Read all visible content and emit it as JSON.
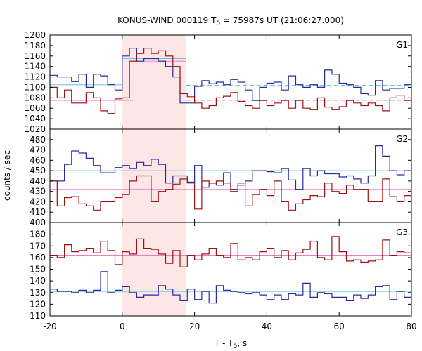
{
  "chart_data": {
    "type": "line",
    "title": {
      "main": "KONUS-WIND 000119 T",
      "sub": "0",
      "rest": " = 75987s UT (21:06:27.000)"
    },
    "xlabel": {
      "main": "T - T",
      "sub": "0",
      "rest": ", s"
    },
    "ylabel": "counts / sec",
    "xlim": [
      -20,
      80
    ],
    "x_ticks": [
      -20,
      0,
      20,
      40,
      60,
      80
    ],
    "x_tick_labels": [
      "-20",
      "0",
      "20",
      "40",
      "60",
      "80"
    ],
    "colors": {
      "red_series": "#a01010",
      "blue_series": "#2a2aa0",
      "pink_level": "#e880c8",
      "cyan_level": "#60c8e0",
      "highlight": "#fde6e6"
    },
    "highlight_interval": [
      0,
      17.7
    ],
    "bin_width": 2,
    "x_start": -20,
    "panels": [
      {
        "label": "G1",
        "ylim": [
          1020,
          1200
        ],
        "y_ticks": [
          1020,
          1040,
          1060,
          1080,
          1100,
          1120,
          1140,
          1160,
          1180,
          1200
        ],
        "series": [
          {
            "color_key": "blue_series",
            "values": [
              1123,
              1120,
              1120,
              1111,
              1125,
              1100,
              1125,
              1122,
              1105,
              1095,
              1160,
              1175,
              1150,
              1155,
              1155,
              1150,
              1140,
              1120,
              1070,
              1070,
              1102,
              1113,
              1107,
              1110,
              1105,
              1115,
              1110,
              1095,
              1075,
              1100,
              1108,
              1110,
              1095,
              1122,
              1105,
              1100,
              1105,
              1100,
              1133,
              1125,
              1108,
              1105,
              1100,
              1088,
              1085,
              1113,
              1095,
              1098,
              1098,
              1105
            ]
          },
          {
            "color_key": "red_series",
            "values": [
              1100,
              1080,
              1095,
              1070,
              1070,
              1090,
              1080,
              1055,
              1050,
              1078,
              1080,
              1150,
              1165,
              1175,
              1165,
              1170,
              1160,
              1140,
              1088,
              1082,
              1070,
              1060,
              1065,
              1080,
              1083,
              1090,
              1073,
              1065,
              1060,
              1075,
              1065,
              1070,
              1075,
              1060,
              1075,
              1060,
              1058,
              1080,
              1062,
              1058,
              1063,
              1075,
              1070,
              1065,
              1070,
              1065,
              1055,
              1080,
              1085,
              1075
            ]
          }
        ],
        "levels": [
          {
            "color_key": "pink_level",
            "segments": [
              {
                "from": -20,
                "to": 3,
                "y": 1075,
                "style": "solid"
              },
              {
                "from": 3,
                "to": 17.7,
                "y": 1150,
                "style": "solid"
              },
              {
                "from": 17.7,
                "to": 80,
                "y": 1075,
                "style": "dashed"
              }
            ]
          },
          {
            "color_key": "cyan_level",
            "segments": [
              {
                "from": -20,
                "to": 0,
                "y": 1105,
                "style": "solid"
              },
              {
                "from": 0,
                "to": 17.7,
                "y": 1155,
                "style": "solid"
              },
              {
                "from": 17.7,
                "to": 80,
                "y": 1104,
                "style": "dashed"
              }
            ]
          }
        ]
      },
      {
        "label": "G2",
        "ylim": [
          400,
          490
        ],
        "y_ticks": [
          400,
          410,
          420,
          430,
          440,
          450,
          460,
          470,
          480
        ],
        "series": [
          {
            "color_key": "blue_series",
            "values": [
              440,
              440,
              456,
              469,
              467,
              462,
              455,
              448,
              448,
              453,
              455,
              452,
              458,
              455,
              461,
              456,
              438,
              445,
              445,
              439,
              455,
              434,
              438,
              436,
              448,
              432,
              436,
              440,
              450,
              450,
              449,
              448,
              452,
              441,
              432,
              452,
              445,
              450,
              447,
              447,
              444,
              445,
              442,
              438,
              445,
              474,
              464,
              450,
              446,
              450
            ]
          },
          {
            "color_key": "red_series",
            "values": [
              440,
              416,
              424,
              425,
              418,
              416,
              412,
              420,
              420,
              424,
              427,
              440,
              445,
              445,
              420,
              430,
              432,
              437,
              442,
              438,
              413,
              440,
              438,
              440,
              438,
              430,
              438,
              416,
              427,
              432,
              426,
              440,
              420,
              412,
              418,
              422,
              426,
              425,
              438,
              430,
              428,
              436,
              432,
              432,
              420,
              420,
              442,
              425,
              420,
              426
            ]
          }
        ],
        "levels": [
          {
            "color_key": "pink_level",
            "segments": [
              {
                "from": -20,
                "to": 80,
                "y": 432,
                "style": "solid"
              }
            ]
          },
          {
            "color_key": "cyan_level",
            "segments": [
              {
                "from": -20,
                "to": 80,
                "y": 450,
                "style": "solid"
              }
            ]
          }
        ]
      },
      {
        "label": "G3",
        "ylim": [
          110,
          190
        ],
        "y_ticks": [
          110,
          120,
          130,
          140,
          150,
          160,
          170,
          180
        ],
        "series": [
          {
            "color_key": "blue_series",
            "values": [
              133,
              131,
              131,
              130,
              132,
              130,
              132,
              148,
              130,
              132,
              135,
              130,
              126,
              128,
              128,
              136,
              133,
              128,
              123,
              133,
              124,
              131,
              121,
              136,
              132,
              131,
              130,
              129,
              130,
              128,
              124,
              128,
              124,
              129,
              128,
              138,
              126,
              130,
              129,
              126,
              126,
              123,
              128,
              125,
              128,
              135,
              136,
              124,
              131,
              126
            ]
          },
          {
            "color_key": "red_series",
            "values": [
              162,
              160,
              171,
              165,
              166,
              168,
              164,
              174,
              166,
              154,
              165,
              163,
              176,
              168,
              167,
              163,
              155,
              166,
              152,
              162,
              158,
              163,
              168,
              162,
              160,
              172,
              158,
              160,
              158,
              165,
              168,
              160,
              166,
              158,
              164,
              167,
              174,
              160,
              158,
              178,
              165,
              157,
              158,
              156,
              157,
              158,
              175,
              162,
              165,
              164
            ]
          }
        ],
        "levels": [
          {
            "color_key": "pink_level",
            "segments": [
              {
                "from": -20,
                "to": 80,
                "y": 162,
                "style": "solid"
              }
            ]
          },
          {
            "color_key": "cyan_level",
            "segments": [
              {
                "from": -20,
                "to": 80,
                "y": 131,
                "style": "solid"
              }
            ]
          }
        ]
      }
    ]
  }
}
